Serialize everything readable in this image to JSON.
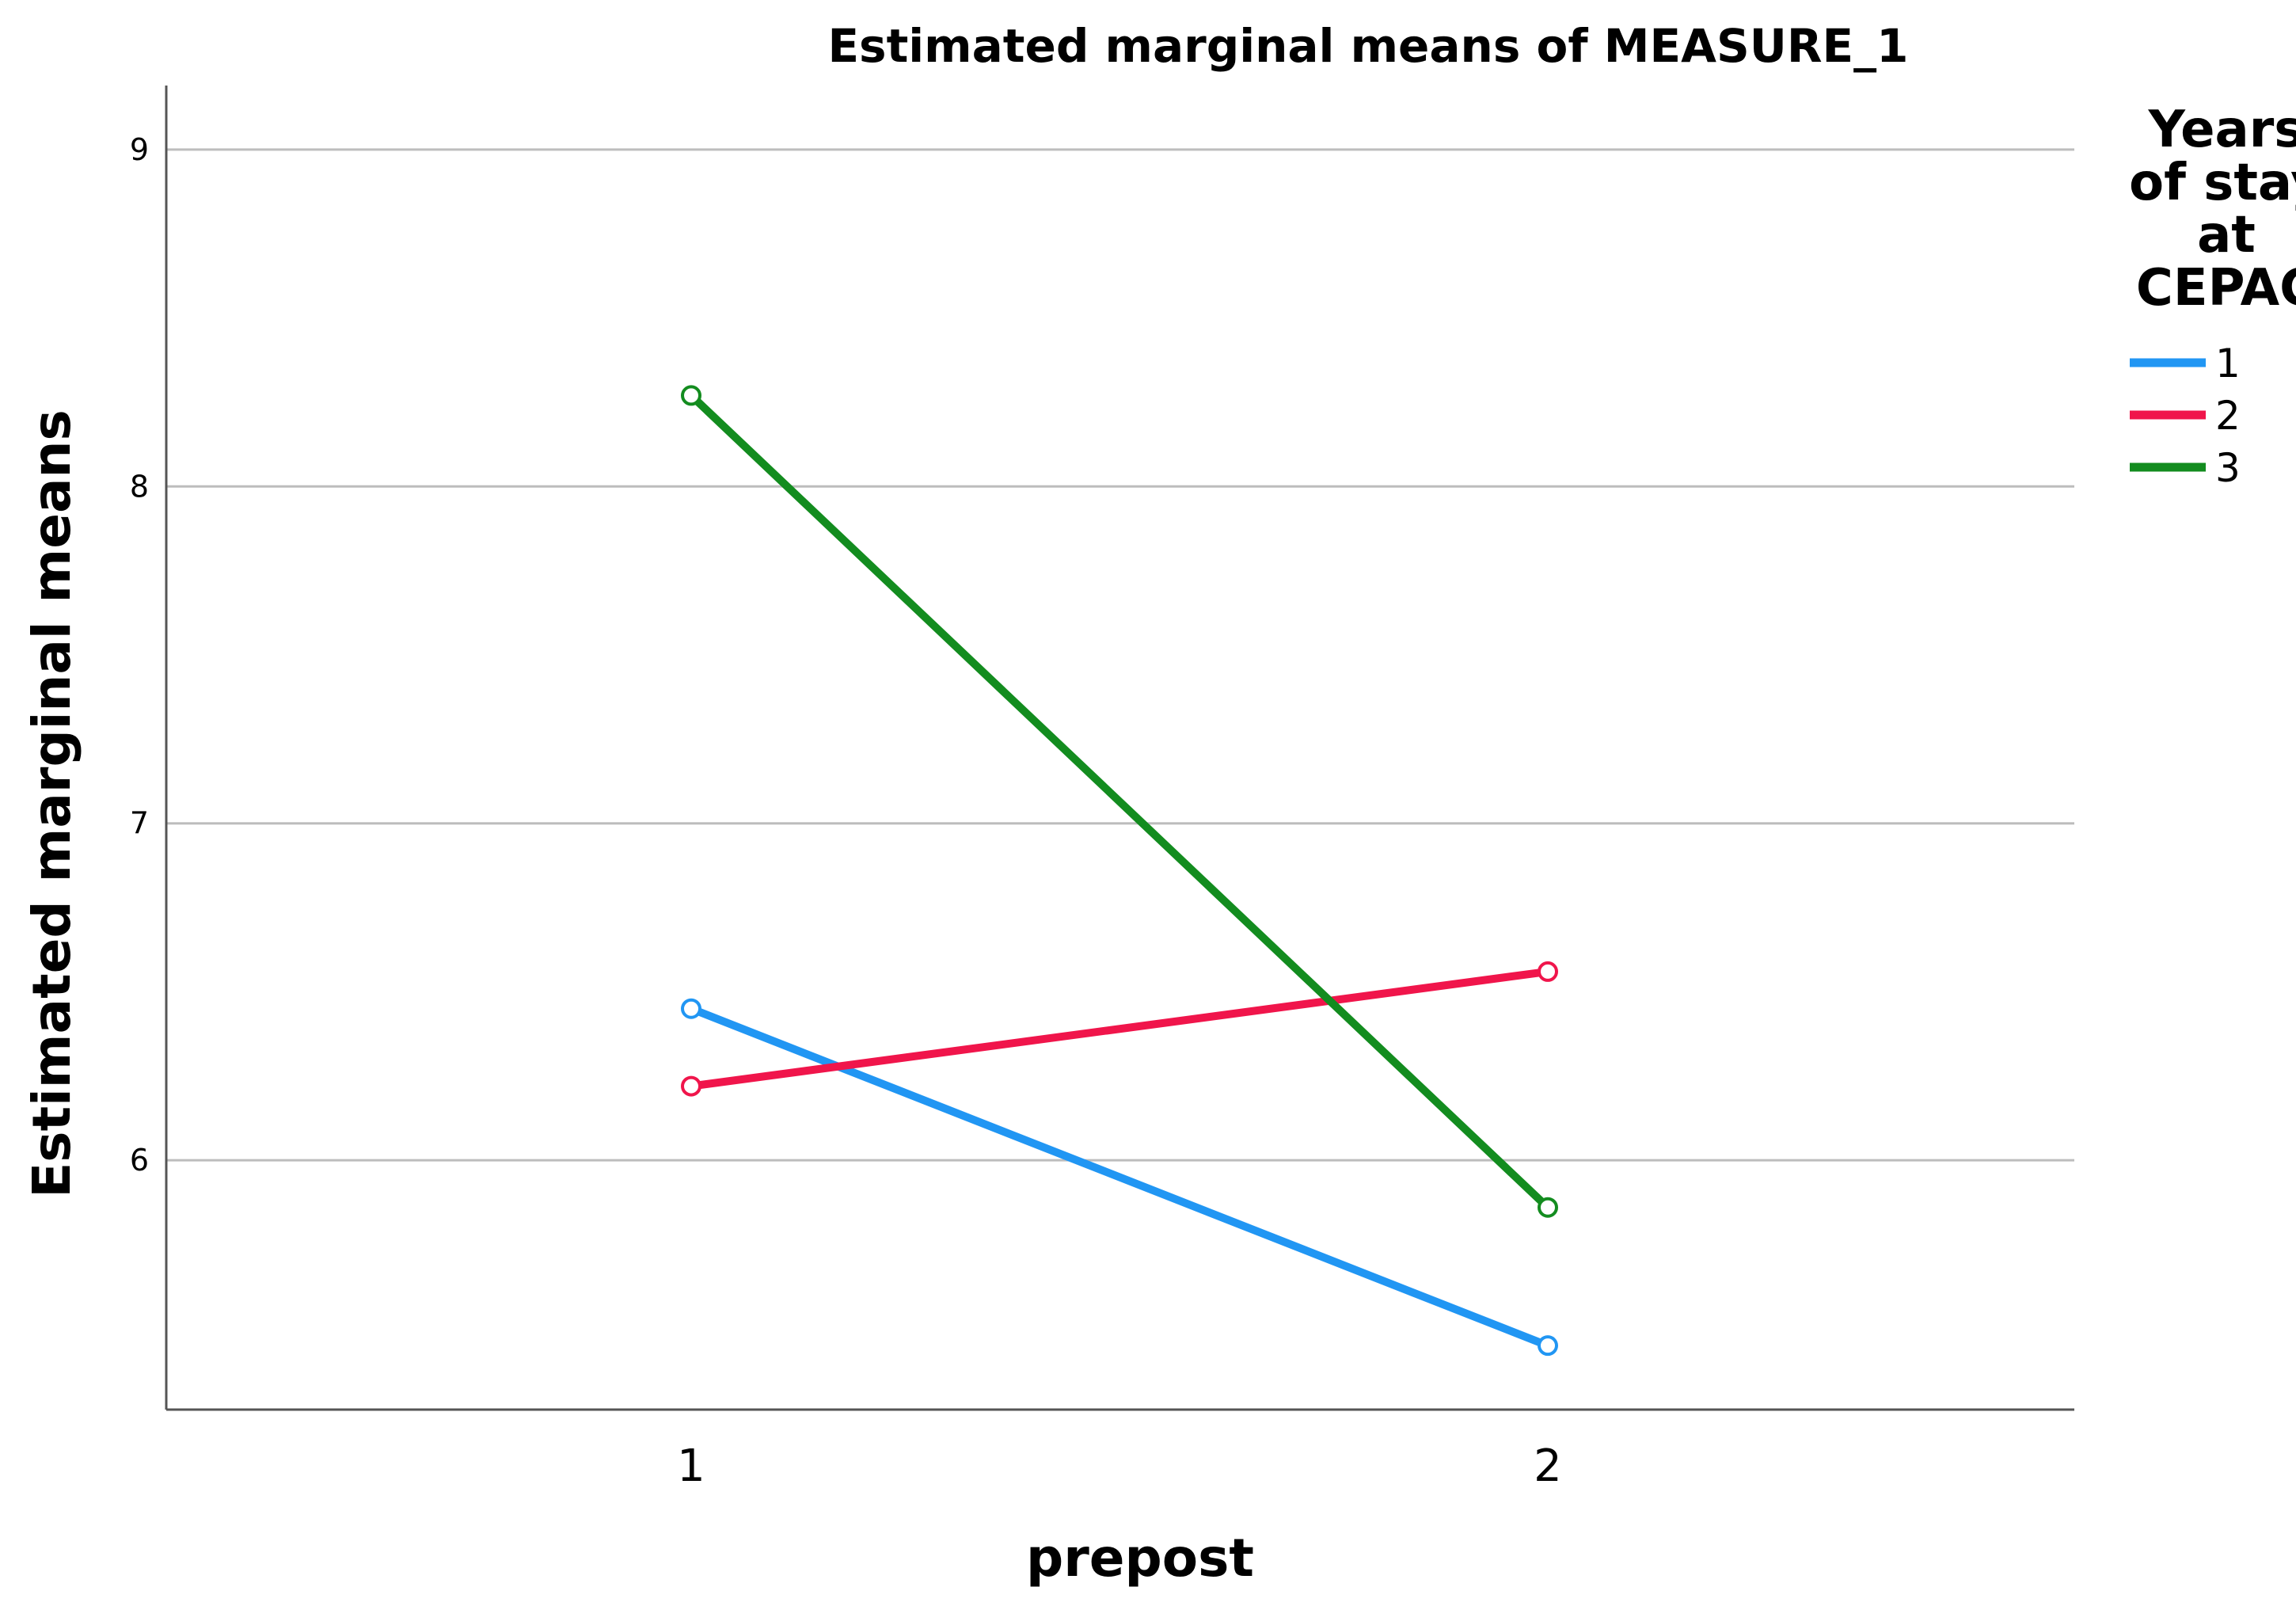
{
  "chart_data": {
    "type": "line",
    "title": "Estimated marginal means of MEASURE_1",
    "xlabel": "prepost",
    "ylabel": "Estimated marginal means",
    "categories": [
      "1",
      "2"
    ],
    "y_ticks": [
      "6",
      "7",
      "8",
      "9"
    ],
    "ylim": [
      5.26,
      9.19
    ],
    "grid": "horizontal",
    "legend": {
      "title_lines": [
        "Years",
        "of stay",
        "at",
        "CEPAC"
      ],
      "placement": "right"
    },
    "series": [
      {
        "name": "1",
        "color": "#2196f3",
        "values": [
          6.45,
          5.45
        ]
      },
      {
        "name": "2",
        "color": "#f0154b",
        "values": [
          6.22,
          6.56
        ]
      },
      {
        "name": "3",
        "color": "#138c1f",
        "values": [
          8.27,
          5.86
        ]
      }
    ]
  }
}
